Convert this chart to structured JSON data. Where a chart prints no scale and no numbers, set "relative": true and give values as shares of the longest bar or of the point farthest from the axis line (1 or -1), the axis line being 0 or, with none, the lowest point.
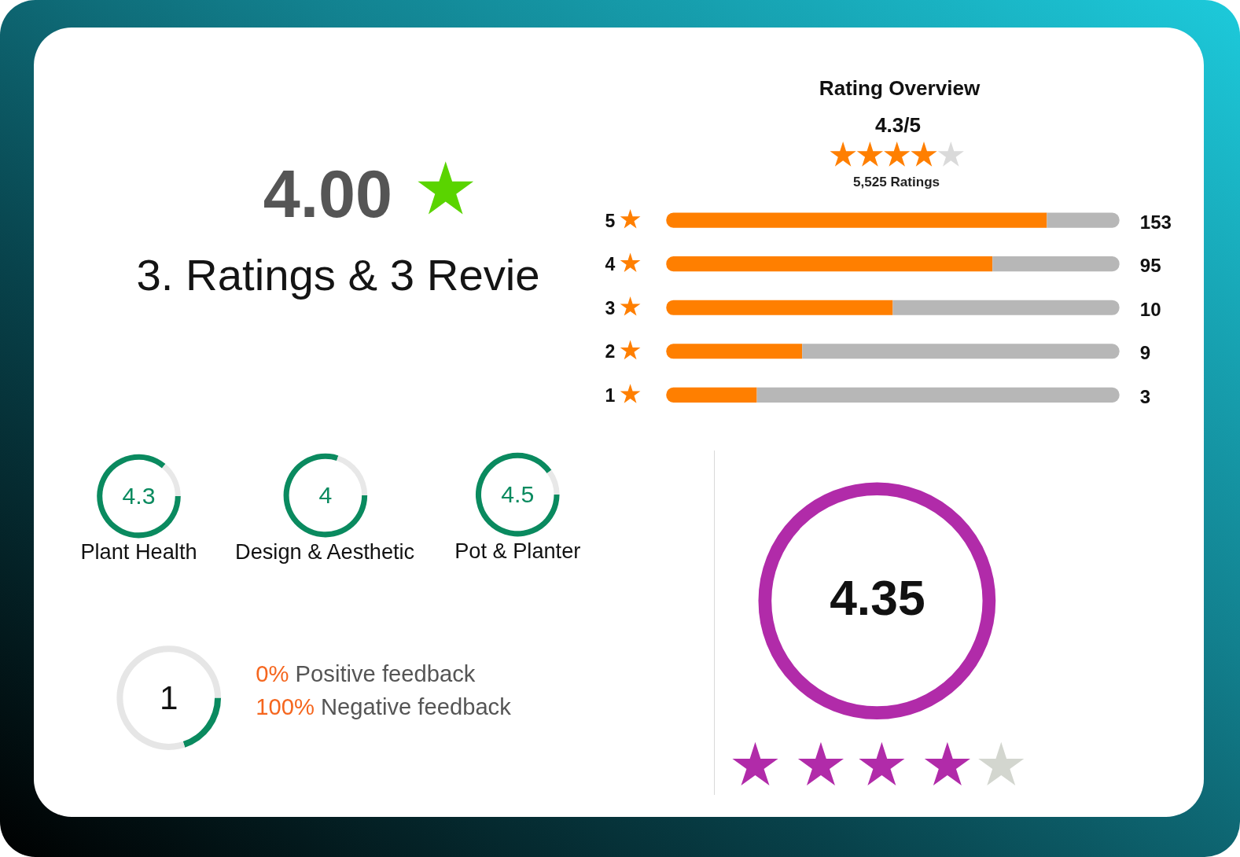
{
  "chart_data": [
    {
      "type": "other",
      "annotations": [
        "4.00",
        "3. Ratings & 3 Revie"
      ]
    },
    {
      "type": "bar",
      "orientation": "horizontal",
      "stacked": true,
      "relative": true,
      "title": "Rating Overview",
      "subtitle": "4.3/5",
      "annotations": [
        "5,525 Ratings",
        "153",
        "95",
        "10",
        "9",
        "3"
      ],
      "categories": [
        "5",
        "4",
        "3",
        "2",
        "1"
      ],
      "series": [
        {
          "color": "#ff7f00",
          "values": [
            0.84,
            0.72,
            0.5,
            0.3,
            0.2
          ]
        },
        {
          "color": "#b7b7b7",
          "values": [
            0.16,
            0.28,
            0.5,
            0.7,
            0.8
          ]
        }
      ]
    },
    {
      "type": "donut",
      "title": "Plant Health",
      "categories": [
        null,
        null
      ],
      "values": [
        86,
        14
      ],
      "colors": [
        "#0a8a5f",
        "#e8e8e8"
      ],
      "annotations": [
        "4.3"
      ]
    },
    {
      "type": "donut",
      "title": "Design & Aesthetic",
      "categories": [
        null,
        null
      ],
      "values": [
        80,
        20
      ],
      "colors": [
        "#0a8a5f",
        "#e8e8e8"
      ],
      "annotations": [
        "4"
      ]
    },
    {
      "type": "donut",
      "title": "Pot & Planter",
      "categories": [
        null,
        null
      ],
      "values": [
        90,
        10
      ],
      "colors": [
        "#0a8a5f",
        "#e8e8e8"
      ],
      "annotations": [
        "4.5"
      ]
    },
    {
      "type": "donut",
      "categories": [
        null,
        null
      ],
      "values": [
        20,
        80
      ],
      "colors": [
        "#0a8a5f",
        "#e6e6e6"
      ],
      "annotations": [
        "1",
        "0% Positive feedback",
        "100% Negative feedback"
      ]
    },
    {
      "type": "other",
      "annotations": [
        "4.35"
      ]
    }
  ]
}
